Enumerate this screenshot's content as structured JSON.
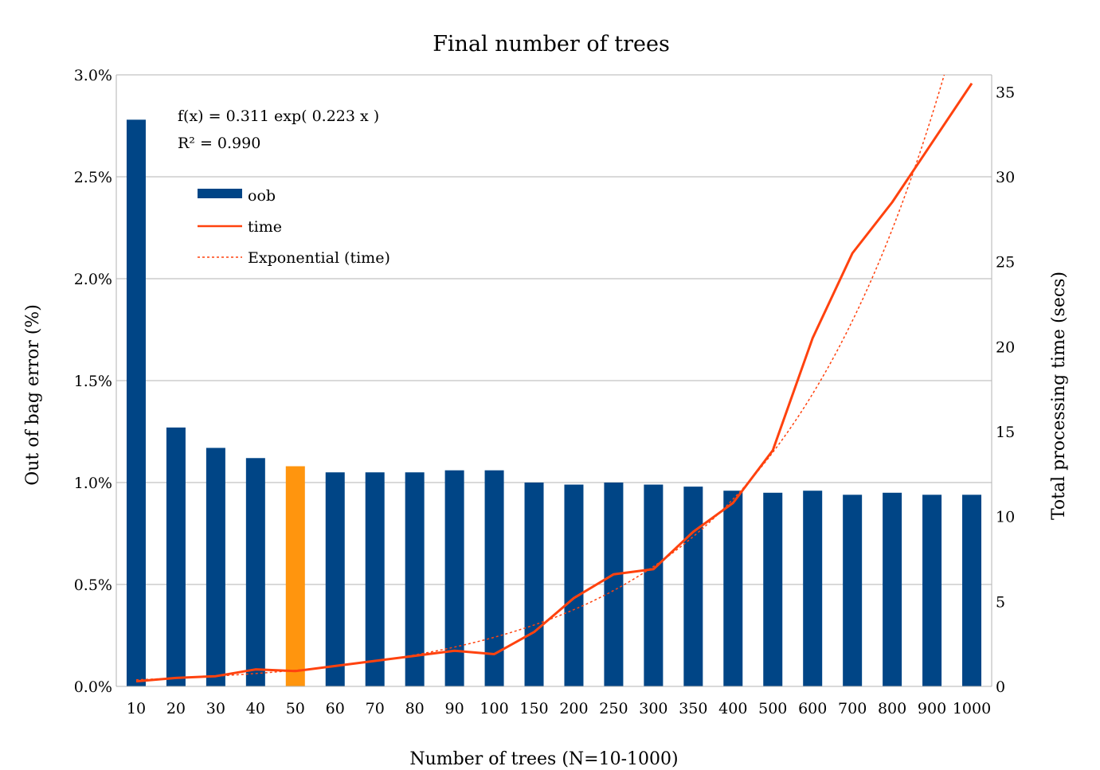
{
  "chart_data": {
    "type": "bar",
    "title": "Final number of trees",
    "xlabel": "Number of trees (N=10-1000)",
    "ylabel": "Out of bag error (%)",
    "y2label": "Total processing time (secs)",
    "categories": [
      "10",
      "20",
      "30",
      "40",
      "50",
      "60",
      "70",
      "80",
      "90",
      "100",
      "150",
      "200",
      "250",
      "300",
      "350",
      "400",
      "500",
      "600",
      "700",
      "800",
      "900",
      "1000"
    ],
    "ylim": [
      0,
      3.0
    ],
    "yticks": [
      "0.0%",
      "0.5%",
      "1.0%",
      "1.5%",
      "2.0%",
      "2.5%",
      "3.0%"
    ],
    "y2lim": [
      0,
      36
    ],
    "y2ticks": [
      "0",
      "5",
      "10",
      "15",
      "20",
      "25",
      "30",
      "35"
    ],
    "grid": true,
    "legend_position": "top-left",
    "series": [
      {
        "name": "oob",
        "type": "bar",
        "axis": "left",
        "color": "#004586",
        "highlight_color": "#ff950e",
        "highlight_index": 4,
        "values": [
          2.78,
          1.27,
          1.17,
          1.12,
          1.08,
          1.05,
          1.05,
          1.05,
          1.06,
          1.06,
          1.0,
          0.99,
          1.0,
          0.99,
          0.98,
          0.96,
          0.95,
          0.96,
          0.94,
          0.95,
          0.94,
          0.94
        ]
      },
      {
        "name": "time",
        "type": "line",
        "axis": "right",
        "color": "#ff420e",
        "values": [
          0.3,
          0.5,
          0.6,
          1.0,
          0.9,
          1.2,
          1.5,
          1.8,
          2.1,
          1.9,
          3.2,
          5.2,
          6.6,
          6.9,
          9.1,
          10.8,
          13.9,
          20.5,
          25.5,
          28.5,
          32.0,
          35.5
        ]
      },
      {
        "name": "Exponential (time)",
        "type": "trendline",
        "axis": "right",
        "color": "#ff420e",
        "dash": true,
        "a": 0.311,
        "b": 0.223
      }
    ],
    "annotations": {
      "equation": "f(x) = 0.311 exp( 0.223 x )",
      "r2": "R² = 0.990"
    }
  }
}
